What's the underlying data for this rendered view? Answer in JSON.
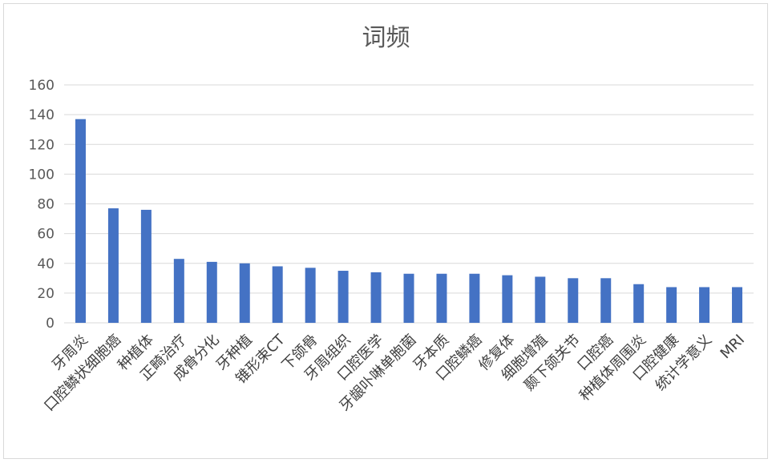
{
  "chart_data": {
    "type": "bar",
    "title": "词频",
    "categories": [
      "牙周炎",
      "口腔鳞状细胞癌",
      "种植体",
      "正畸治疗",
      "成骨分化",
      "牙种植",
      "锥形束CT",
      "下颌骨",
      "牙周组织",
      "口腔医学",
      "牙龈卟啉单胞菌",
      "牙本质",
      "口腔鳞癌",
      "修复体",
      "细胞增殖",
      "颞下颌关节",
      "口腔癌",
      "种植体周围炎",
      "口腔健康",
      "统计学意义",
      "MRI"
    ],
    "values": [
      137,
      77,
      76,
      43,
      41,
      40,
      38,
      37,
      35,
      34,
      33,
      33,
      33,
      32,
      31,
      30,
      30,
      26,
      24,
      24,
      24
    ],
    "ylim": [
      0,
      160
    ],
    "yticks": [
      0,
      20,
      40,
      60,
      80,
      100,
      120,
      140,
      160
    ],
    "grid": true,
    "bar_color": "#4472c4"
  }
}
